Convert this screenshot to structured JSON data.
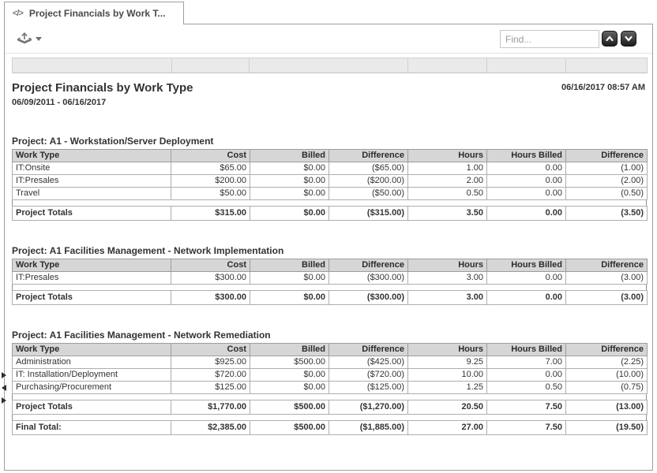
{
  "tab": {
    "icon": "</>",
    "label": "Project Financials by Work T..."
  },
  "toolbar": {
    "find_placeholder": "Find..."
  },
  "report": {
    "title": "Project Financials by Work Type",
    "date_range": "06/09/2011 - 06/16/2017",
    "generated_at": "06/16/2017 08:57 AM"
  },
  "columns": [
    "Work Type",
    "Cost",
    "Billed",
    "Difference",
    "Hours",
    "Hours Billed",
    "Difference"
  ],
  "tables": [
    {
      "caption": "Project: A1 - Workstation/Server Deployment",
      "rows": [
        [
          "IT:Onsite",
          "$65.00",
          "$0.00",
          "($65.00)",
          "1.00",
          "0.00",
          "(1.00)"
        ],
        [
          "IT:Presales",
          "$200.00",
          "$0.00",
          "($200.00)",
          "2.00",
          "0.00",
          "(2.00)"
        ],
        [
          "Travel",
          "$50.00",
          "$0.00",
          "($50.00)",
          "0.50",
          "0.00",
          "(0.50)"
        ]
      ],
      "totals": [
        "Project Totals",
        "$315.00",
        "$0.00",
        "($315.00)",
        "3.50",
        "0.00",
        "(3.50)"
      ]
    },
    {
      "caption": "Project: A1 Facilities Management - Network Implementation",
      "rows": [
        [
          "IT:Presales",
          "$300.00",
          "$0.00",
          "($300.00)",
          "3.00",
          "0.00",
          "(3.00)"
        ]
      ],
      "totals": [
        "Project Totals",
        "$300.00",
        "$0.00",
        "($300.00)",
        "3.00",
        "0.00",
        "(3.00)"
      ]
    },
    {
      "caption": "Project: A1 Facilities Management - Network Remediation",
      "rows": [
        [
          "Administration",
          "$925.00",
          "$500.00",
          "($425.00)",
          "9.25",
          "7.00",
          "(2.25)"
        ],
        [
          "IT: Installation/Deployment",
          "$720.00",
          "$0.00",
          "($720.00)",
          "10.00",
          "0.00",
          "(10.00)"
        ],
        [
          "Purchasing/Procurement",
          "$125.00",
          "$0.00",
          "($125.00)",
          "1.25",
          "0.50",
          "(0.75)"
        ]
      ],
      "totals": [
        "Project Totals",
        "$1,770.00",
        "$500.00",
        "($1,270.00)",
        "20.50",
        "7.50",
        "(13.00)"
      ]
    }
  ],
  "final_total": [
    "Final Total:",
    "$2,385.00",
    "$500.00",
    "($1,885.00)",
    "27.00",
    "7.50",
    "(19.50)"
  ],
  "colors": {
    "negative": "#ff0000",
    "table_header_bg": "#d6d6d6",
    "band_bg": "#eaeaea",
    "nav_button_bg": "#2e2e2e"
  }
}
